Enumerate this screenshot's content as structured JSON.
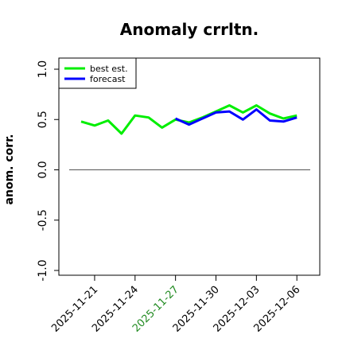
{
  "chart_data": {
    "type": "line",
    "title": "Anomaly crrltn.",
    "ylabel": "anom. corr.",
    "xlabel": "",
    "ylim": [
      -1.0,
      1.0
    ],
    "yticks": [
      "-1.0",
      "-0.5",
      "0.0",
      "0.5",
      "1.0"
    ],
    "x": [
      "2025-11-20",
      "2025-11-21",
      "2025-11-22",
      "2025-11-23",
      "2025-11-24",
      "2025-11-25",
      "2025-11-26",
      "2025-11-27",
      "2025-11-28",
      "2025-11-29",
      "2025-11-30",
      "2025-12-01",
      "2025-12-02",
      "2025-12-03",
      "2025-12-04",
      "2025-12-05",
      "2025-12-06"
    ],
    "xticks": [
      "2025-11-21",
      "2025-11-24",
      "2025-11-27",
      "2025-11-30",
      "2025-12-03",
      "2025-12-06"
    ],
    "highlight_tick": "2025-11-27",
    "highlight_color": "#228B22",
    "reference_line": 0.0,
    "legend_position": "top-left",
    "series": [
      {
        "name": "best est.",
        "color": "#00EE00",
        "values": [
          0.48,
          0.44,
          0.49,
          0.36,
          0.54,
          0.52,
          0.42,
          0.5,
          0.47,
          0.52,
          0.58,
          0.64,
          0.57,
          0.64,
          0.56,
          0.51,
          0.54
        ]
      },
      {
        "name": "forecast",
        "color": "#0000FF",
        "values": [
          null,
          null,
          null,
          null,
          null,
          null,
          null,
          0.51,
          0.45,
          0.51,
          0.57,
          0.58,
          0.5,
          0.6,
          0.49,
          0.48,
          0.52
        ]
      }
    ]
  }
}
